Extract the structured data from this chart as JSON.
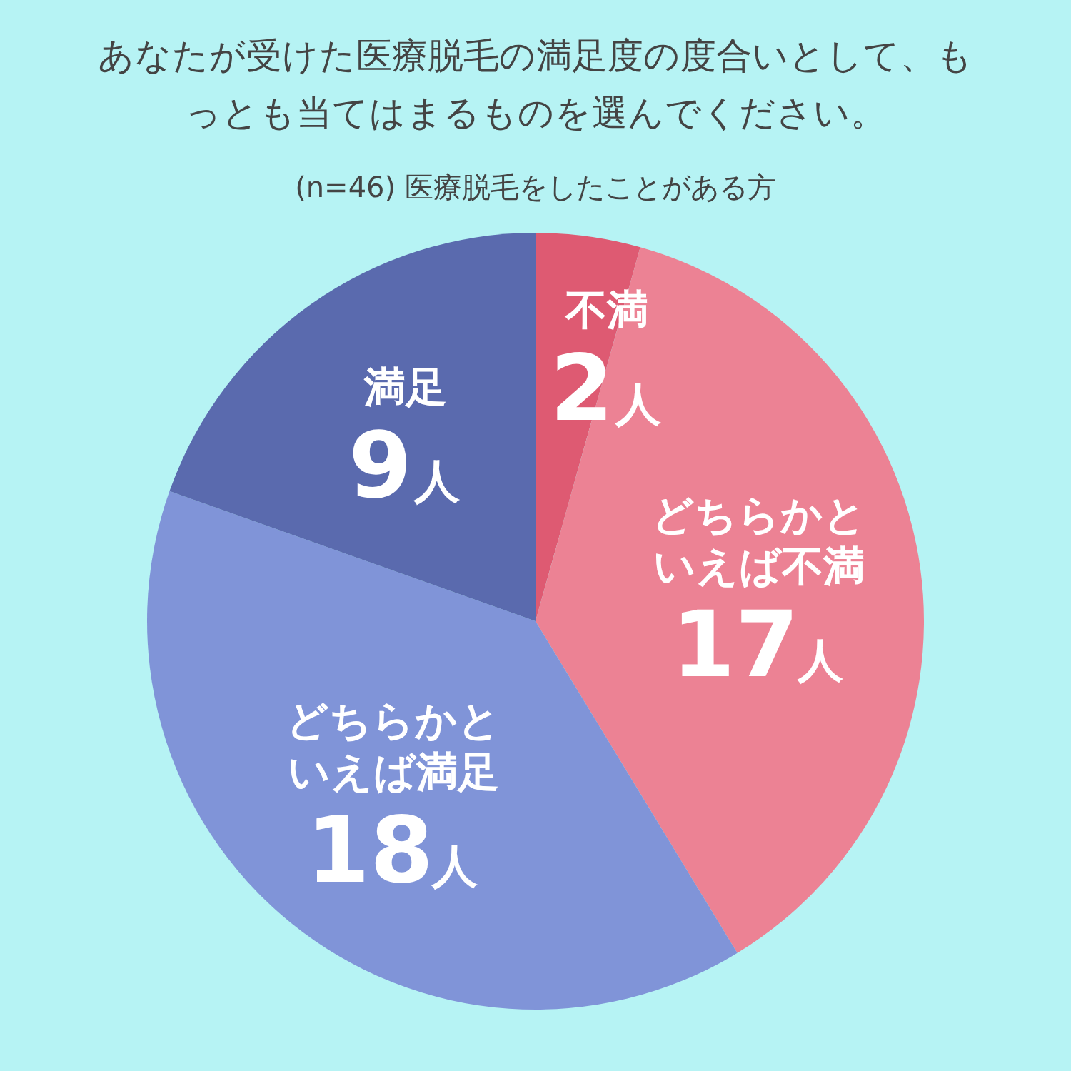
{
  "chart_data": {
    "type": "pie",
    "title": "あなたが受けた医療脱毛の満足度の度合いとして、もっとも当てはまるものを選んでください。",
    "subtitle": "(n=46) 医療脱毛をしたことがある方",
    "categories": [
      "不満",
      "どちらかといえば不満",
      "どちらかといえば満足",
      "満足"
    ],
    "values": [
      2,
      17,
      18,
      9
    ],
    "colors": [
      "#de5a72",
      "#ec8294",
      "#8094d8",
      "#5a6aae"
    ],
    "value_labels": [
      "2人",
      "17人",
      "18人",
      "9人"
    ],
    "legend": false
  }
}
